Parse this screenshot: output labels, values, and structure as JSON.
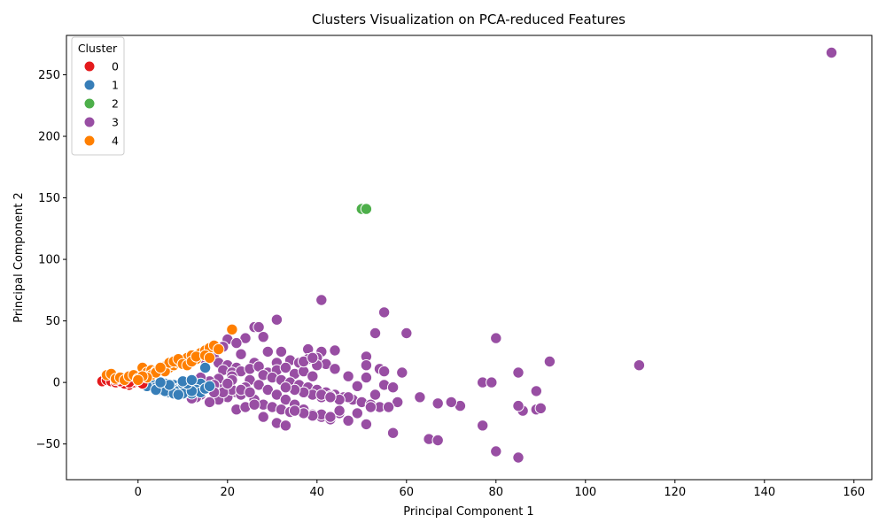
{
  "chart_data": {
    "type": "scatter",
    "title": "Clusters Visualization on PCA-reduced Features",
    "xlabel": "Principal Component 1",
    "ylabel": "Principal Component 2",
    "xlim": [
      -16,
      164
    ],
    "ylim": [
      -79,
      282
    ],
    "xticks": [
      0,
      20,
      40,
      60,
      80,
      100,
      120,
      140,
      160
    ],
    "yticks": [
      -50,
      0,
      50,
      100,
      150,
      200,
      250
    ],
    "grid": false,
    "legend": {
      "title": "Cluster",
      "placement": "top-left",
      "entries": [
        "0",
        "1",
        "2",
        "3",
        "4"
      ]
    },
    "colors": {
      "0": "#e41a1c",
      "1": "#377eb8",
      "2": "#4daf4a",
      "3": "#984ea3",
      "4": "#ff7f00"
    },
    "series": [
      {
        "name": "0",
        "points": [
          [
            -8,
            1
          ],
          [
            -7,
            2
          ],
          [
            -6,
            1
          ],
          [
            -5,
            0
          ],
          [
            -4,
            2
          ],
          [
            -3,
            0
          ],
          [
            -2,
            1
          ],
          [
            -2,
            -2
          ],
          [
            -1,
            0
          ],
          [
            0,
            1
          ],
          [
            -1,
            2
          ],
          [
            -3,
            -1
          ],
          [
            -4,
            1
          ],
          [
            -5,
            2
          ],
          [
            1,
            -1
          ],
          [
            -2,
            0
          ]
        ]
      },
      {
        "name": "1",
        "points": [
          [
            2,
            0
          ],
          [
            3,
            -2
          ],
          [
            4,
            1
          ],
          [
            5,
            -3
          ],
          [
            6,
            -1
          ],
          [
            7,
            -4
          ],
          [
            8,
            -2
          ],
          [
            9,
            -5
          ],
          [
            10,
            -3
          ],
          [
            11,
            -6
          ],
          [
            12,
            -4
          ],
          [
            13,
            -2
          ],
          [
            14,
            -1
          ],
          [
            15,
            12
          ],
          [
            3,
            -1
          ],
          [
            5,
            -6
          ],
          [
            6,
            -4
          ],
          [
            7,
            -8
          ],
          [
            8,
            -6
          ],
          [
            9,
            -7
          ],
          [
            10,
            -1
          ],
          [
            11,
            -8
          ],
          [
            12,
            -9
          ],
          [
            13,
            -6
          ],
          [
            14,
            -8
          ],
          [
            4,
            -4
          ],
          [
            6,
            -7
          ],
          [
            8,
            -9
          ],
          [
            10,
            -9
          ],
          [
            12,
            -7
          ],
          [
            2,
            -3
          ],
          [
            4,
            -6
          ],
          [
            9,
            -10
          ],
          [
            7,
            -2
          ],
          [
            11,
            -1
          ],
          [
            15,
            -5
          ],
          [
            16,
            -3
          ],
          [
            5,
            0
          ],
          [
            10,
            1
          ],
          [
            12,
            2
          ]
        ]
      },
      {
        "name": "2",
        "points": [
          [
            50,
            141
          ],
          [
            51,
            141
          ]
        ]
      },
      {
        "name": "3",
        "points": [
          [
            155,
            268
          ],
          [
            41,
            67
          ],
          [
            55,
            57
          ],
          [
            31,
            51
          ],
          [
            26,
            45
          ],
          [
            27,
            45
          ],
          [
            112,
            14
          ],
          [
            92,
            17
          ],
          [
            80,
            36
          ],
          [
            60,
            40
          ],
          [
            53,
            40
          ],
          [
            21,
            43
          ],
          [
            28,
            37
          ],
          [
            24,
            36
          ],
          [
            20,
            35
          ],
          [
            17,
            27
          ],
          [
            19,
            29
          ],
          [
            22,
            32
          ],
          [
            38,
            27
          ],
          [
            44,
            26
          ],
          [
            41,
            25
          ],
          [
            29,
            25
          ],
          [
            32,
            25
          ],
          [
            51,
            21
          ],
          [
            38,
            19
          ],
          [
            40,
            20
          ],
          [
            34,
            18
          ],
          [
            36,
            16
          ],
          [
            23,
            23
          ],
          [
            26,
            16
          ],
          [
            31,
            16
          ],
          [
            42,
            15
          ],
          [
            44,
            11
          ],
          [
            40,
            14
          ],
          [
            51,
            14
          ],
          [
            54,
            11
          ],
          [
            55,
            9
          ],
          [
            59,
            8
          ],
          [
            85,
            8
          ],
          [
            16,
            22
          ],
          [
            17,
            20
          ],
          [
            15,
            18
          ],
          [
            18,
            16
          ],
          [
            20,
            14
          ],
          [
            22,
            12
          ],
          [
            19,
            10
          ],
          [
            21,
            8
          ],
          [
            23,
            9
          ],
          [
            25,
            11
          ],
          [
            27,
            13
          ],
          [
            29,
            8
          ],
          [
            31,
            10
          ],
          [
            33,
            12
          ],
          [
            35,
            7
          ],
          [
            37,
            9
          ],
          [
            39,
            5
          ],
          [
            28,
            6
          ],
          [
            30,
            4
          ],
          [
            32,
            2
          ],
          [
            34,
            0
          ],
          [
            36,
            -2
          ],
          [
            38,
            -4
          ],
          [
            40,
            -6
          ],
          [
            42,
            -8
          ],
          [
            44,
            -10
          ],
          [
            46,
            -12
          ],
          [
            48,
            -14
          ],
          [
            50,
            -16
          ],
          [
            52,
            -18
          ],
          [
            54,
            -20
          ],
          [
            25,
            2
          ],
          [
            27,
            -2
          ],
          [
            29,
            -6
          ],
          [
            31,
            -10
          ],
          [
            33,
            -14
          ],
          [
            35,
            -18
          ],
          [
            37,
            -22
          ],
          [
            39,
            -26
          ],
          [
            41,
            -28
          ],
          [
            43,
            -30
          ],
          [
            24,
            -4
          ],
          [
            22,
            -8
          ],
          [
            20,
            -12
          ],
          [
            18,
            -14
          ],
          [
            16,
            -16
          ],
          [
            14,
            -10
          ],
          [
            13,
            -12
          ],
          [
            19,
            -4
          ],
          [
            21,
            -6
          ],
          [
            23,
            -10
          ],
          [
            26,
            -14
          ],
          [
            28,
            -18
          ],
          [
            30,
            -20
          ],
          [
            32,
            -22
          ],
          [
            34,
            -24
          ],
          [
            22,
            -22
          ],
          [
            24,
            -20
          ],
          [
            26,
            -18
          ],
          [
            28,
            -28
          ],
          [
            31,
            -33
          ],
          [
            33,
            -35
          ],
          [
            45,
            -25
          ],
          [
            47,
            -31
          ],
          [
            51,
            -34
          ],
          [
            57,
            -41
          ],
          [
            65,
            -46
          ],
          [
            67,
            -47
          ],
          [
            77,
            -35
          ],
          [
            80,
            -56
          ],
          [
            85,
            -61
          ],
          [
            86,
            -23
          ],
          [
            85,
            -19
          ],
          [
            89,
            -22
          ],
          [
            90,
            -21
          ],
          [
            89,
            -7
          ],
          [
            72,
            -19
          ],
          [
            70,
            -16
          ],
          [
            67,
            -17
          ],
          [
            63,
            -12
          ],
          [
            58,
            -16
          ],
          [
            56,
            -20
          ],
          [
            52,
            -20
          ],
          [
            49,
            -25
          ],
          [
            47,
            -12
          ],
          [
            45,
            -14
          ],
          [
            43,
            -11
          ],
          [
            41,
            -12
          ],
          [
            39,
            -10
          ],
          [
            37,
            -8
          ],
          [
            35,
            -6
          ],
          [
            33,
            -4
          ],
          [
            53,
            -10
          ],
          [
            55,
            -2
          ],
          [
            57,
            -4
          ],
          [
            49,
            -3
          ],
          [
            47,
            5
          ],
          [
            51,
            4
          ],
          [
            77,
            0
          ],
          [
            79,
            0
          ],
          [
            37,
            17
          ],
          [
            39,
            20
          ],
          [
            21,
            5
          ],
          [
            18,
            3
          ],
          [
            16,
            1
          ],
          [
            15,
            -4
          ],
          [
            17,
            -2
          ],
          [
            19,
            -8
          ],
          [
            21,
            2
          ],
          [
            23,
            -6
          ],
          [
            25,
            -8
          ],
          [
            14,
            4
          ],
          [
            13,
            -6
          ],
          [
            12,
            -13
          ],
          [
            17,
            -8
          ],
          [
            20,
            -1
          ],
          [
            41,
            -10
          ],
          [
            43,
            -12
          ],
          [
            45,
            -23
          ],
          [
            41,
            -26
          ],
          [
            43,
            -28
          ],
          [
            39,
            -27
          ],
          [
            37,
            -25
          ],
          [
            35,
            -23
          ]
        ]
      },
      {
        "name": "4",
        "points": [
          [
            21,
            43
          ],
          [
            -7,
            6
          ],
          [
            -6,
            7
          ],
          [
            -5,
            3
          ],
          [
            -4,
            4
          ],
          [
            -3,
            2
          ],
          [
            -2,
            5
          ],
          [
            -1,
            6
          ],
          [
            0,
            3
          ],
          [
            1,
            12
          ],
          [
            2,
            8
          ],
          [
            3,
            10
          ],
          [
            4,
            9
          ],
          [
            5,
            11
          ],
          [
            6,
            13
          ],
          [
            7,
            12
          ],
          [
            8,
            14
          ],
          [
            9,
            16
          ],
          [
            10,
            18
          ],
          [
            11,
            20
          ],
          [
            12,
            22
          ],
          [
            13,
            19
          ],
          [
            14,
            24
          ],
          [
            15,
            26
          ],
          [
            16,
            28
          ],
          [
            17,
            30
          ],
          [
            18,
            27
          ],
          [
            6,
            9
          ],
          [
            7,
            16
          ],
          [
            8,
            17
          ],
          [
            9,
            19
          ],
          [
            10,
            15
          ],
          [
            11,
            14
          ],
          [
            3,
            6
          ],
          [
            4,
            8
          ],
          [
            2,
            4
          ],
          [
            1,
            5
          ],
          [
            0,
            2
          ],
          [
            5,
            12
          ],
          [
            12,
            17
          ],
          [
            13,
            21
          ],
          [
            15,
            22
          ],
          [
            16,
            20
          ]
        ]
      }
    ]
  }
}
